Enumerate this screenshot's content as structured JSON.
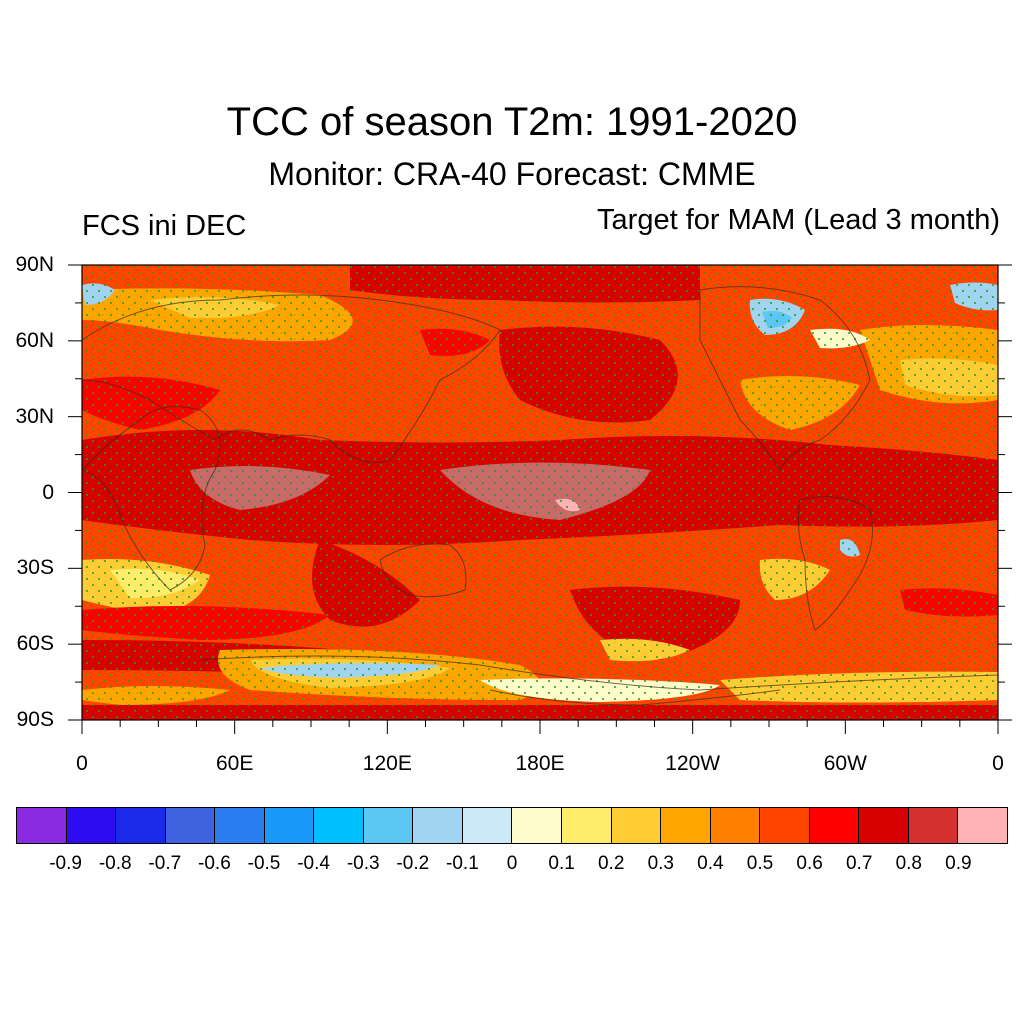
{
  "title": "TCC of season T2m: 1991-2020",
  "subtitle": "Monitor: CRA-40   Forecast: CMME",
  "left_label": "FCS ini DEC",
  "right_label": "Target for MAM (Lead 3 month)",
  "lat_labels": [
    "90N",
    "60N",
    "30N",
    "0",
    "30S",
    "60S",
    "90S"
  ],
  "lon_labels": [
    "0",
    "60E",
    "120E",
    "180E",
    "120W",
    "60W",
    "0"
  ],
  "colorbar": {
    "colors": [
      "#8a2be2",
      "#2e0cf2",
      "#1a2ae8",
      "#3f63e0",
      "#2b7df0",
      "#1898f8",
      "#00bfff",
      "#5cc6f4",
      "#a0d4f0",
      "#cde9f8",
      "#fffccc",
      "#ffec6a",
      "#ffcc33",
      "#ffa600",
      "#ff7f00",
      "#ff4500",
      "#ff0000",
      "#d60000",
      "#d43030",
      "#ffb3b5"
    ],
    "labels": [
      "-0.9",
      "-0.8",
      "-0.7",
      "-0.6",
      "-0.5",
      "-0.4",
      "-0.3",
      "-0.2",
      "-0.1",
      "0",
      "0.1",
      "0.2",
      "0.3",
      "0.4",
      "0.5",
      "0.6",
      "0.7",
      "0.8",
      "0.9"
    ]
  },
  "map": {
    "stipple_color": "#20a020",
    "dominant_colors": [
      "#ff4500",
      "#ff0000",
      "#d60000",
      "#ffa600",
      "#ffcc33",
      "#ffec6a",
      "#fffccc",
      "#a0d4f0"
    ]
  }
}
